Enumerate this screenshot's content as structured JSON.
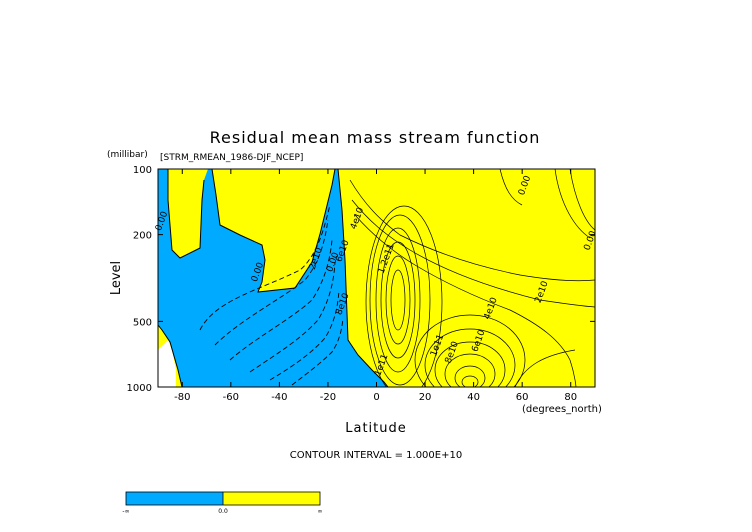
{
  "chart_data": {
    "type": "contour",
    "title": "Residual mean mass stream function",
    "subtitle": "[STRM_RMEAN_1986-DJF_NCEP]",
    "xlabel": "Latitude",
    "x_units": "(degrees_north)",
    "ylabel": "Level",
    "y_units": "(millibar)",
    "xlim": [
      -90,
      90
    ],
    "ylim": [
      1000,
      100
    ],
    "y_scale": "log",
    "x_ticks": [
      -80,
      -60,
      -40,
      -20,
      0,
      20,
      40,
      60,
      80
    ],
    "y_ticks": [
      100,
      200,
      500,
      1000
    ],
    "contour_interval_text": "CONTOUR INTERVAL = 1.000E+10",
    "contour_labels": [
      {
        "text": "0.00",
        "x": -87.5,
        "y": 175
      },
      {
        "text": "0.00",
        "x": -48,
        "y": 300
      },
      {
        "text": "2e10",
        "x": -24,
        "y": 260
      },
      {
        "text": "0.00",
        "x": -17,
        "y": 270
      },
      {
        "text": "6e10",
        "x": -13,
        "y": 240
      },
      {
        "text": "8e10",
        "x": -13,
        "y": 420
      },
      {
        "text": "4e10",
        "x": -7,
        "y": 170
      },
      {
        "text": "1.2e11",
        "x": 5,
        "y": 260
      },
      {
        "text": "1e11",
        "x": 3,
        "y": 800
      },
      {
        "text": "1e11",
        "x": 26,
        "y": 650
      },
      {
        "text": "8e10",
        "x": 32,
        "y": 700
      },
      {
        "text": "6e10",
        "x": 43,
        "y": 620
      },
      {
        "text": "4e10",
        "x": 48,
        "y": 440
      },
      {
        "text": "2e10",
        "x": 69,
        "y": 370
      },
      {
        "text": "0.00",
        "x": 62,
        "y": 120
      },
      {
        "text": "0.00",
        "x": 89,
        "y": 215
      }
    ],
    "colorbar": {
      "colors": [
        "#00aaff",
        "#ffff00"
      ],
      "labels": [
        "-∞",
        "0.0",
        "∞"
      ]
    }
  }
}
